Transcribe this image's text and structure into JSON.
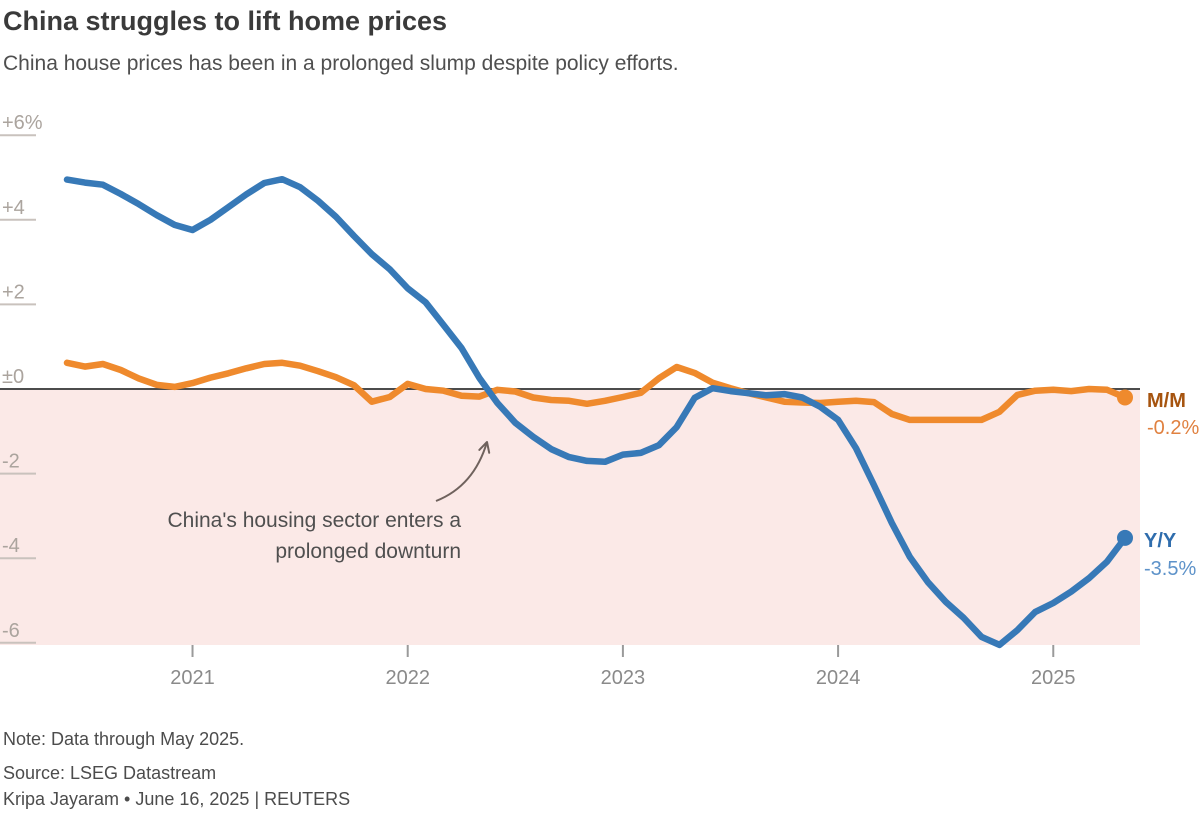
{
  "header": {
    "title": "China struggles to lift home prices",
    "subtitle": "China house prices has been in a prolonged slump despite policy efforts."
  },
  "chart_data": {
    "type": "line",
    "frequency": "monthly",
    "x_start": "2020-06",
    "x_end": "2025-05",
    "x_tick_labels": [
      "2021",
      "2022",
      "2023",
      "2024",
      "2025"
    ],
    "y_ticks": [
      {
        "value": 6,
        "label": "+6%"
      },
      {
        "value": 4,
        "label": "+4"
      },
      {
        "value": 2,
        "label": "+2"
      },
      {
        "value": 0,
        "label": "±0"
      },
      {
        "value": -2,
        "label": "-2"
      },
      {
        "value": -4,
        "label": "-4"
      },
      {
        "value": -6,
        "label": "-6"
      }
    ],
    "ylim": [
      -6.6,
      6.6
    ],
    "grid": "left-ticks-only",
    "legend_position": "right-end-labels",
    "baseline_color": "#4c4c4c",
    "negative_region_color": "#fbe9e7",
    "annotation": {
      "line1": "China's housing sector enters a",
      "line2": "prolonged downturn",
      "arrow_color": "#6f625d",
      "text_color": "#4f4f4f"
    },
    "series": [
      {
        "name": "Y/Y",
        "end_label": "Y/Y",
        "end_value_label": "-3.5%",
        "color": "#3779b7",
        "label_color": "#2f6dad",
        "value_color": "#5d92c9",
        "values": [
          4.95,
          4.88,
          4.83,
          4.61,
          4.37,
          4.11,
          3.88,
          3.76,
          4.0,
          4.3,
          4.6,
          4.87,
          4.96,
          4.77,
          4.45,
          4.07,
          3.62,
          3.19,
          2.83,
          2.38,
          2.05,
          1.51,
          0.97,
          0.26,
          -0.33,
          -0.8,
          -1.13,
          -1.42,
          -1.61,
          -1.7,
          -1.72,
          -1.55,
          -1.51,
          -1.33,
          -0.9,
          -0.21,
          0.02,
          -0.05,
          -0.1,
          -0.15,
          -0.12,
          -0.2,
          -0.42,
          -0.73,
          -1.4,
          -2.27,
          -3.17,
          -3.97,
          -4.56,
          -5.03,
          -5.41,
          -5.86,
          -6.05,
          -5.7,
          -5.27,
          -5.06,
          -4.79,
          -4.47,
          -4.08,
          -3.52
        ]
      },
      {
        "name": "M/M",
        "end_label": "M/M",
        "end_value_label": "-0.2%",
        "color": "#ef8a2d",
        "label_color": "#a6540f",
        "value_color": "#e08140",
        "values": [
          0.62,
          0.53,
          0.59,
          0.45,
          0.25,
          0.1,
          0.05,
          0.14,
          0.27,
          0.37,
          0.49,
          0.59,
          0.62,
          0.55,
          0.42,
          0.28,
          0.09,
          -0.3,
          -0.19,
          0.12,
          0.0,
          -0.04,
          -0.16,
          -0.18,
          -0.02,
          -0.06,
          -0.2,
          -0.26,
          -0.28,
          -0.35,
          -0.28,
          -0.19,
          -0.09,
          0.25,
          0.52,
          0.38,
          0.15,
          0.02,
          -0.1,
          -0.2,
          -0.3,
          -0.32,
          -0.33,
          -0.3,
          -0.28,
          -0.31,
          -0.59,
          -0.73,
          -0.73,
          -0.73,
          -0.73,
          -0.73,
          -0.54,
          -0.14,
          -0.04,
          -0.02,
          -0.05,
          0.0,
          -0.02,
          -0.2
        ]
      }
    ]
  },
  "footer": {
    "note": "Note: Data through May 2025.",
    "source": "Source: LSEG Datastream",
    "byline": "Kripa Jayaram • June 16, 2025 | REUTERS"
  }
}
